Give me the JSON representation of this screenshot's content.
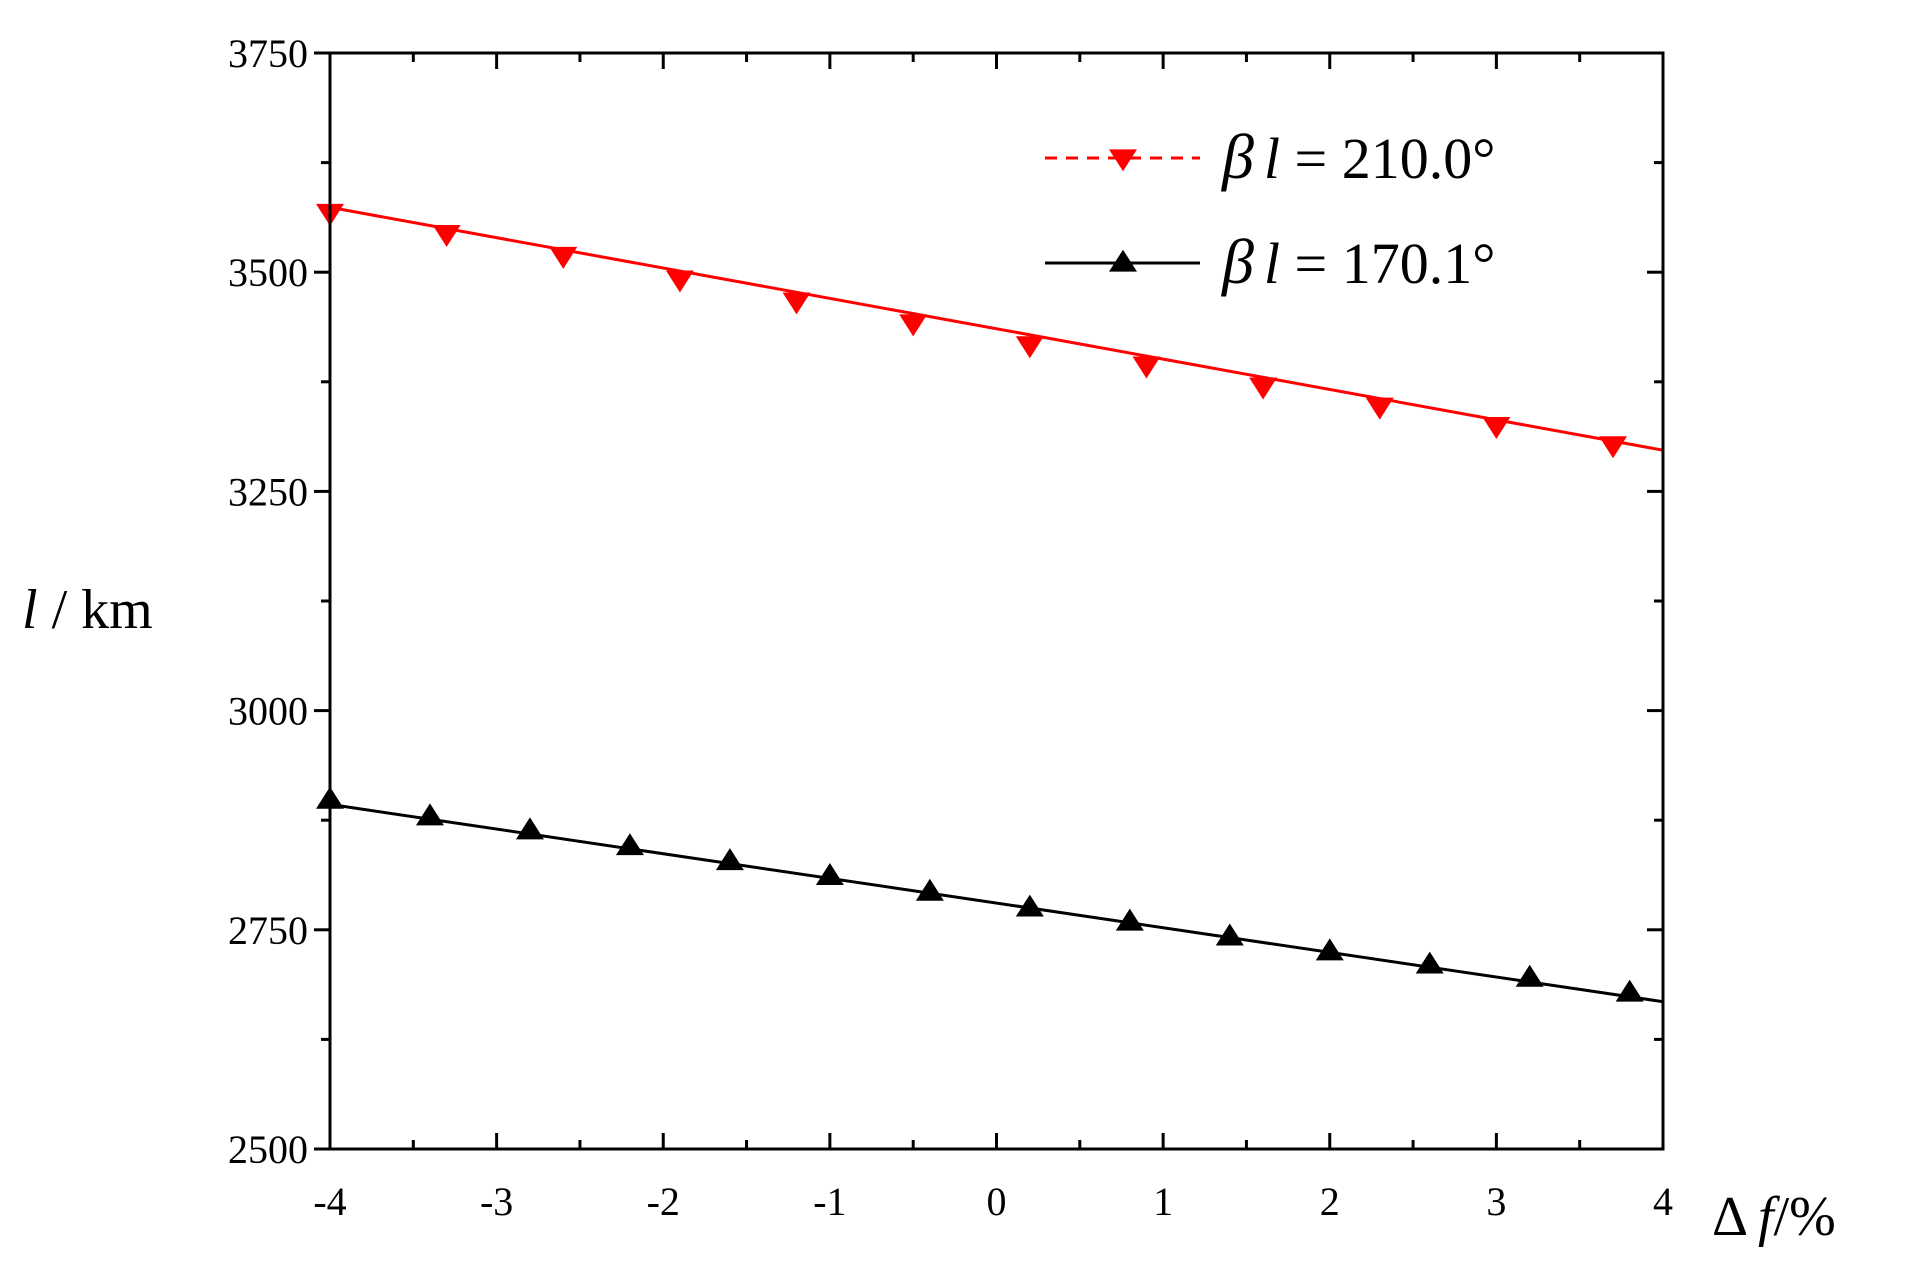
{
  "chart_data": {
    "type": "line",
    "xlabel": {
      "greek": "Δ",
      "italic": "f",
      "suffix": "/%"
    },
    "ylabel": {
      "italic": "l",
      "suffix": " / km"
    },
    "xlim": [
      -4,
      4
    ],
    "ylim": [
      2500,
      3750
    ],
    "x_ticks": [
      -4,
      -3,
      -2,
      -1,
      0,
      1,
      2,
      3,
      4
    ],
    "x_tick_labels": [
      "-4",
      "-3",
      "-2",
      "-1",
      "0",
      "1",
      "2",
      "3",
      "4"
    ],
    "y_ticks": [
      2500,
      2750,
      3000,
      3250,
      3500,
      3750
    ],
    "y_tick_labels": [
      "2500",
      "2750",
      "3000",
      "3250",
      "3500",
      "3750"
    ],
    "x_minor_ticks": [
      -3.5,
      -2.5,
      -1.5,
      -0.5,
      0.5,
      1.5,
      2.5,
      3.5
    ],
    "y_minor_ticks": [
      2625,
      2875,
      3125,
      3375,
      3625
    ],
    "grid": false,
    "legend_position": "top-right",
    "series": [
      {
        "name": {
          "greek": "β",
          "italic": "l",
          "rest": " = 210.0°"
        },
        "color": "#ff0000",
        "marker": "triangle-down",
        "legend_line": "dashed",
        "line": [
          [
            -4,
            3574
          ],
          [
            4,
            3297
          ]
        ],
        "x": [
          -4,
          -3.3,
          -2.6,
          -1.9,
          -1.2,
          -0.5,
          0.2,
          0.9,
          1.6,
          2.3,
          3.0,
          3.7
        ],
        "y": [
          3568,
          3544,
          3519,
          3492,
          3467,
          3442,
          3417,
          3394,
          3370,
          3347,
          3325,
          3303
        ]
      },
      {
        "name": {
          "greek": "β",
          "italic": "l",
          "rest": " = 170.1°"
        },
        "color": "#000000",
        "marker": "triangle-up",
        "legend_line": "solid",
        "line": [
          [
            -4,
            2893
          ],
          [
            4,
            2668
          ]
        ],
        "x": [
          -4,
          -3.4,
          -2.8,
          -2.2,
          -1.6,
          -1.0,
          -0.4,
          0.2,
          0.8,
          1.4,
          2.0,
          2.6,
          3.2,
          3.8
        ],
        "y": [
          2898,
          2879,
          2863,
          2845,
          2828,
          2811,
          2793,
          2775,
          2759,
          2742,
          2725,
          2710,
          2695,
          2678
        ]
      }
    ]
  }
}
